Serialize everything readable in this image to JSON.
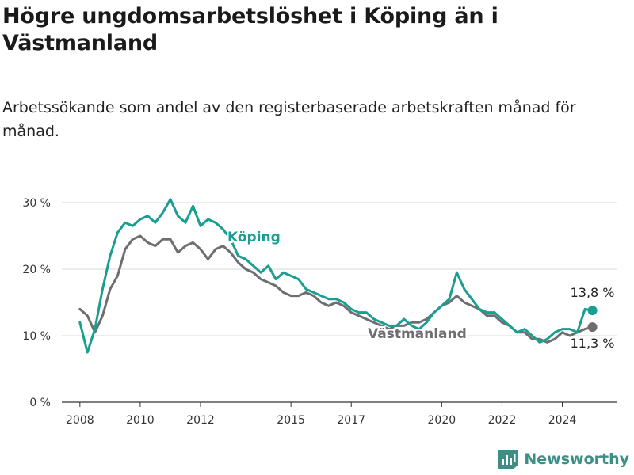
{
  "header": {
    "title": "Högre ungdomsarbetslöshet i Köping än i Västmanland",
    "subtitle": "Arbetssökande som andel av den registerbaserade arbetskraften månad för månad."
  },
  "brand": {
    "name": "Newsworthy",
    "icon": "newsworthy-logo-icon",
    "color": "#3d8f85"
  },
  "chart_data": {
    "type": "line",
    "title": "Högre ungdomsarbetslöshet i Köping än i Västmanland",
    "subtitle": "Arbetssökande som andel av den registerbaserade arbetskraften månad för månad.",
    "xlabel": "",
    "ylabel": "",
    "x_ticks": [
      "2008",
      "2010",
      "2012",
      "2015",
      "2017",
      "2020",
      "2022",
      "2024"
    ],
    "y_ticks": [
      "0 %",
      "10 %",
      "20 %",
      "30 %"
    ],
    "ylim": [
      0,
      30
    ],
    "grid": "horizontal",
    "legend": "inline labels",
    "series": [
      {
        "name": "Köping",
        "color": "#1a9e91",
        "end_label": "13,8 %",
        "x": [
          "2008-01",
          "2008-04",
          "2008-07",
          "2008-10",
          "2009-01",
          "2009-04",
          "2009-07",
          "2009-10",
          "2010-01",
          "2010-04",
          "2010-07",
          "2010-10",
          "2011-01",
          "2011-04",
          "2011-07",
          "2011-10",
          "2012-01",
          "2012-04",
          "2012-07",
          "2012-10",
          "2013-01",
          "2013-04",
          "2013-07",
          "2013-10",
          "2014-01",
          "2014-04",
          "2014-07",
          "2014-10",
          "2015-01",
          "2015-04",
          "2015-07",
          "2015-10",
          "2016-01",
          "2016-04",
          "2016-07",
          "2016-10",
          "2017-01",
          "2017-04",
          "2017-07",
          "2017-10",
          "2018-01",
          "2018-04",
          "2018-07",
          "2018-10",
          "2019-01",
          "2019-04",
          "2019-07",
          "2019-10",
          "2020-01",
          "2020-04",
          "2020-07",
          "2020-10",
          "2021-01",
          "2021-04",
          "2021-07",
          "2021-10",
          "2022-01",
          "2022-04",
          "2022-07",
          "2022-10",
          "2023-01",
          "2023-04",
          "2023-07",
          "2023-10",
          "2024-01",
          "2024-04",
          "2024-07",
          "2024-10",
          "2025-01"
        ],
        "values": [
          12.0,
          7.5,
          11.0,
          17.0,
          22.0,
          25.5,
          27.0,
          26.5,
          27.5,
          28.0,
          27.0,
          28.5,
          30.5,
          28.0,
          27.0,
          29.5,
          26.5,
          27.5,
          27.0,
          26.0,
          24.5,
          22.0,
          21.5,
          20.5,
          19.5,
          20.5,
          18.5,
          19.5,
          19.0,
          18.5,
          17.0,
          16.5,
          16.0,
          15.5,
          15.5,
          15.0,
          14.0,
          13.5,
          13.5,
          12.5,
          12.0,
          11.5,
          11.5,
          12.5,
          11.5,
          11.0,
          12.0,
          13.5,
          14.5,
          15.5,
          19.5,
          17.0,
          15.5,
          14.0,
          13.5,
          13.5,
          12.5,
          11.5,
          10.5,
          11.0,
          10.0,
          9.0,
          9.5,
          10.5,
          11.0,
          11.0,
          10.5,
          14.0,
          13.8
        ]
      },
      {
        "name": "Västmanland",
        "color": "#6e6e72",
        "end_label": "11,3 %",
        "x": [
          "2008-01",
          "2008-04",
          "2008-07",
          "2008-10",
          "2009-01",
          "2009-04",
          "2009-07",
          "2009-10",
          "2010-01",
          "2010-04",
          "2010-07",
          "2010-10",
          "2011-01",
          "2011-04",
          "2011-07",
          "2011-10",
          "2012-01",
          "2012-04",
          "2012-07",
          "2012-10",
          "2013-01",
          "2013-04",
          "2013-07",
          "2013-10",
          "2014-01",
          "2014-04",
          "2014-07",
          "2014-10",
          "2015-01",
          "2015-04",
          "2015-07",
          "2015-10",
          "2016-01",
          "2016-04",
          "2016-07",
          "2016-10",
          "2017-01",
          "2017-04",
          "2017-07",
          "2017-10",
          "2018-01",
          "2018-04",
          "2018-07",
          "2018-10",
          "2019-01",
          "2019-04",
          "2019-07",
          "2019-10",
          "2020-01",
          "2020-04",
          "2020-07",
          "2020-10",
          "2021-01",
          "2021-04",
          "2021-07",
          "2021-10",
          "2022-01",
          "2022-04",
          "2022-07",
          "2022-10",
          "2023-01",
          "2023-04",
          "2023-07",
          "2023-10",
          "2024-01",
          "2024-04",
          "2024-07",
          "2024-10",
          "2025-01"
        ],
        "values": [
          14.0,
          13.0,
          10.5,
          13.0,
          17.0,
          19.0,
          23.0,
          24.5,
          25.0,
          24.0,
          23.5,
          24.5,
          24.5,
          22.5,
          23.5,
          24.0,
          23.0,
          21.5,
          23.0,
          23.5,
          22.5,
          21.0,
          20.0,
          19.5,
          18.5,
          18.0,
          17.5,
          16.5,
          16.0,
          16.0,
          16.5,
          16.0,
          15.0,
          14.5,
          15.0,
          14.5,
          13.5,
          13.0,
          12.5,
          12.0,
          11.5,
          11.0,
          11.5,
          11.5,
          12.0,
          12.0,
          12.5,
          13.5,
          14.5,
          15.0,
          16.0,
          15.0,
          14.5,
          14.0,
          13.0,
          13.0,
          12.0,
          11.5,
          10.5,
          10.5,
          9.5,
          9.5,
          9.0,
          9.5,
          10.5,
          10.0,
          10.5,
          11.0,
          11.3
        ]
      }
    ]
  }
}
